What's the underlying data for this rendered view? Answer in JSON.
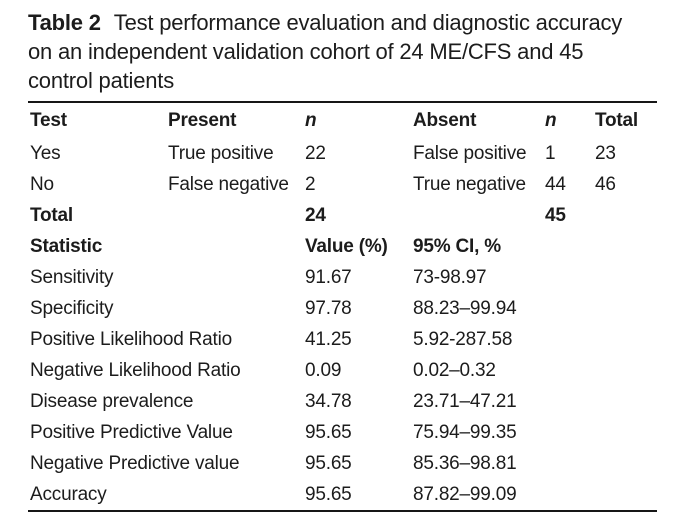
{
  "title": {
    "label": "Table 2",
    "line1_rest": "Test performance evaluation and diagnostic accuracy",
    "line2": "on an independent validation cohort of 24 ME/CFS and 45",
    "line3": "control patients"
  },
  "table": {
    "columns": [
      "Test",
      "Present",
      "n",
      "Absent",
      "n",
      "Total"
    ],
    "column_italic": [
      false,
      false,
      true,
      false,
      true,
      false
    ],
    "rows": [
      {
        "cells": [
          "Yes",
          "True positive",
          "22",
          "False positive",
          "1",
          "23"
        ],
        "bold": false
      },
      {
        "cells": [
          "No",
          "False negative",
          "2",
          "True negative",
          "44",
          "46"
        ],
        "bold": false
      },
      {
        "cells": [
          "Total",
          "",
          "24",
          "",
          "45",
          ""
        ],
        "bold": true
      },
      {
        "cells": [
          "Statistic",
          "",
          "Value (%)",
          "95% CI, %",
          "",
          ""
        ],
        "bold": true
      },
      {
        "cells": [
          "Sensitivity",
          "",
          "91.67",
          "73-98.97",
          "",
          ""
        ],
        "bold": false
      },
      {
        "cells": [
          "Specificity",
          "",
          "97.78",
          "88.23–99.94",
          "",
          ""
        ],
        "bold": false
      },
      {
        "cells": [
          "Positive Likelihood Ratio",
          "",
          "41.25",
          "5.92-287.58",
          "",
          ""
        ],
        "bold": false
      },
      {
        "cells": [
          "Negative Likelihood Ratio",
          "",
          "0.09",
          "0.02–0.32",
          "",
          ""
        ],
        "bold": false
      },
      {
        "cells": [
          "Disease prevalence",
          "",
          "34.78",
          "23.71–47.21",
          "",
          ""
        ],
        "bold": false
      },
      {
        "cells": [
          "Positive Predictive Value",
          "",
          "95.65",
          "75.94–99.35",
          "",
          ""
        ],
        "bold": false
      },
      {
        "cells": [
          "Negative Predictive value",
          "",
          "95.65",
          "85.36–98.81",
          "",
          ""
        ],
        "bold": false
      },
      {
        "cells": [
          "Accuracy",
          "",
          "95.65",
          "87.82–99.09",
          "",
          ""
        ],
        "bold": false
      }
    ]
  }
}
